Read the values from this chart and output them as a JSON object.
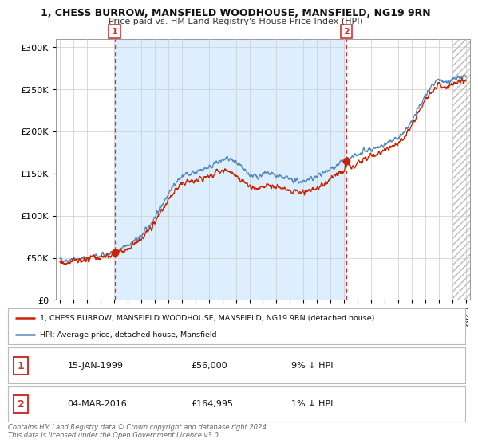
{
  "title1": "1, CHESS BURROW, MANSFIELD WOODHOUSE, MANSFIELD, NG19 9RN",
  "title2": "Price paid vs. HM Land Registry's House Price Index (HPI)",
  "hpi_color": "#5588bb",
  "price_color": "#cc2200",
  "vline_color": "#cc3333",
  "legend_label1": "1, CHESS BURROW, MANSFIELD WOODHOUSE, MANSFIELD, NG19 9RN (detached house)",
  "legend_label2": "HPI: Average price, detached house, Mansfield",
  "point1_date": "15-JAN-1999",
  "point1_price": "£56,000",
  "point1_hpi": "9% ↓ HPI",
  "point1_year": 1999.04,
  "point1_value": 56000,
  "point2_date": "04-MAR-2016",
  "point2_price": "£164,995",
  "point2_hpi": "1% ↓ HPI",
  "point2_year": 2016.17,
  "point2_value": 164995,
  "ylim_min": 0,
  "ylim_max": 310000,
  "xlim_min": 1994.7,
  "xlim_max": 2025.3,
  "hatch_start": 2024.0,
  "shade_color": "#ddeeff",
  "footer": "Contains HM Land Registry data © Crown copyright and database right 2024.\nThis data is licensed under the Open Government Licence v3.0.",
  "background_color": "#ffffff",
  "grid_color": "#cccccc"
}
